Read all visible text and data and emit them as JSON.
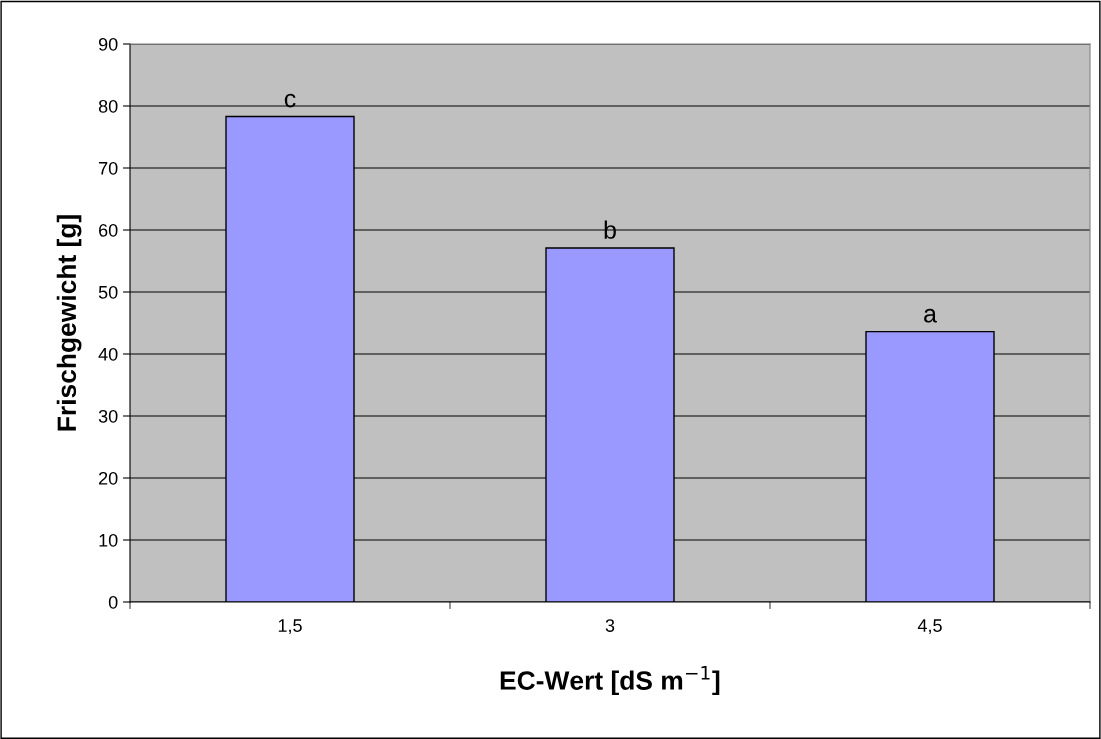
{
  "chart_data": {
    "type": "bar",
    "categories": [
      "1,5",
      "3",
      "4,5"
    ],
    "values": [
      78.3,
      57.1,
      43.6
    ],
    "color": "#9999ff",
    "xlabel": "EC-Wert [dS m$^{−1}$]",
    "ylabel": "Frischgewicht [g]",
    "ylim": [
      0,
      90
    ],
    "yticks": [
      0,
      10,
      20,
      30,
      40,
      50,
      60,
      70,
      80,
      90
    ],
    "grid": "y",
    "annotations": [
      {
        "text": "c",
        "x": "1,5",
        "y": 78.3
      },
      {
        "text": "b",
        "x": "3",
        "y": 57.1
      },
      {
        "text": "a",
        "x": "4,5",
        "y": 43.6
      }
    ]
  }
}
